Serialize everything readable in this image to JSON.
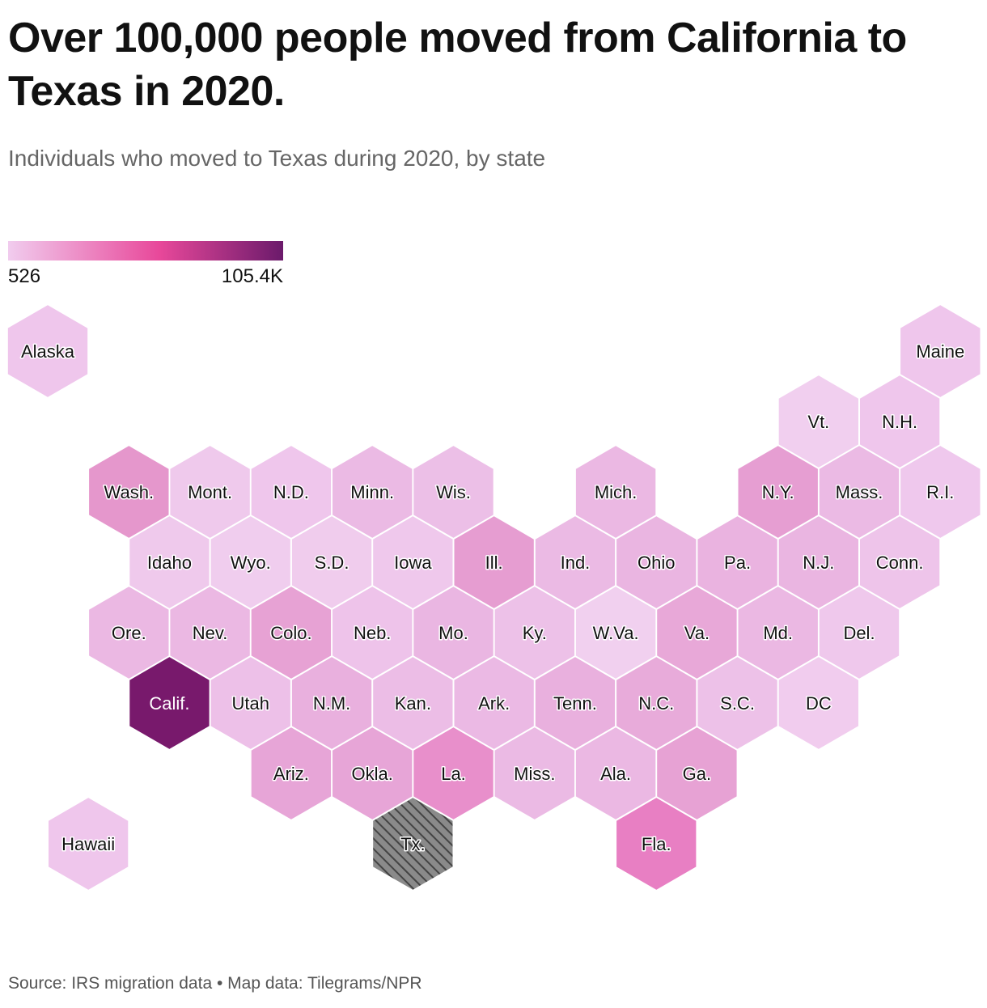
{
  "title": "Over 100,000 people moved from California to Texas in 2020.",
  "subtitle": "Individuals who moved to Texas during 2020, by state",
  "legend": {
    "min_label": "526",
    "max_label": "105.4K",
    "colors": [
      "#f1ccee",
      "#e8489a",
      "#6b1a6b"
    ]
  },
  "destination_fill": "#8a8a8a",
  "source": "Source: IRS migration data • Map data: Tilegrams/NPR",
  "states": [
    {
      "id": "alaska",
      "label": "Alaska",
      "col": 0,
      "row": 0,
      "color": "#efc6ec"
    },
    {
      "id": "maine",
      "label": "Maine",
      "col": 11,
      "row": 0,
      "color": "#efc6ec"
    },
    {
      "id": "vt",
      "label": "Vt.",
      "col": 9.5,
      "row": 1,
      "color": "#f1cfef"
    },
    {
      "id": "nh",
      "label": "N.H.",
      "col": 10.5,
      "row": 1,
      "color": "#efc6ec"
    },
    {
      "id": "wash",
      "label": "Wash.",
      "col": 1,
      "row": 2,
      "color": "#e597cc"
    },
    {
      "id": "mont",
      "label": "Mont.",
      "col": 2,
      "row": 2,
      "color": "#efc9ec"
    },
    {
      "id": "nd",
      "label": "N.D.",
      "col": 3,
      "row": 2,
      "color": "#efc6ec"
    },
    {
      "id": "minn",
      "label": "Minn.",
      "col": 4,
      "row": 2,
      "color": "#ebbae4"
    },
    {
      "id": "wis",
      "label": "Wis.",
      "col": 5,
      "row": 2,
      "color": "#ecbfe7"
    },
    {
      "id": "mich",
      "label": "Mich.",
      "col": 7,
      "row": 2,
      "color": "#ebb8e3"
    },
    {
      "id": "ny",
      "label": "N.Y.",
      "col": 9,
      "row": 2,
      "color": "#e69ed2"
    },
    {
      "id": "mass",
      "label": "Mass.",
      "col": 10,
      "row": 2,
      "color": "#ebbae4"
    },
    {
      "id": "ri",
      "label": "R.I.",
      "col": 11,
      "row": 2,
      "color": "#efc8ed"
    },
    {
      "id": "idaho",
      "label": "Idaho",
      "col": 1.5,
      "row": 3,
      "color": "#efc9ec"
    },
    {
      "id": "wyo",
      "label": "Wyo.",
      "col": 2.5,
      "row": 3,
      "color": "#f0cdee"
    },
    {
      "id": "sd",
      "label": "S.D.",
      "col": 3.5,
      "row": 3,
      "color": "#f0cced"
    },
    {
      "id": "iowa",
      "label": "Iowa",
      "col": 4.5,
      "row": 3,
      "color": "#efc8ec"
    },
    {
      "id": "ill",
      "label": "Ill.",
      "col": 5.5,
      "row": 3,
      "color": "#e69dd1"
    },
    {
      "id": "ind",
      "label": "Ind.",
      "col": 6.5,
      "row": 3,
      "color": "#ebbae4"
    },
    {
      "id": "ohio",
      "label": "Ohio",
      "col": 7.5,
      "row": 3,
      "color": "#eab5e1"
    },
    {
      "id": "pa",
      "label": "Pa.",
      "col": 8.5,
      "row": 3,
      "color": "#eab3e0"
    },
    {
      "id": "nj",
      "label": "N.J.",
      "col": 9.5,
      "row": 3,
      "color": "#eab5e1"
    },
    {
      "id": "conn",
      "label": "Conn.",
      "col": 10.5,
      "row": 3,
      "color": "#eec4ea"
    },
    {
      "id": "ore",
      "label": "Ore.",
      "col": 1,
      "row": 4,
      "color": "#ebb8e3"
    },
    {
      "id": "nev",
      "label": "Nev.",
      "col": 2,
      "row": 4,
      "color": "#ebb8e3"
    },
    {
      "id": "colo",
      "label": "Colo.",
      "col": 3,
      "row": 4,
      "color": "#e7a2d4"
    },
    {
      "id": "neb",
      "label": "Neb.",
      "col": 4,
      "row": 4,
      "color": "#eec3ea"
    },
    {
      "id": "mo",
      "label": "Mo.",
      "col": 5,
      "row": 4,
      "color": "#eab6e2"
    },
    {
      "id": "ky",
      "label": "Ky.",
      "col": 6,
      "row": 4,
      "color": "#edc1e8"
    },
    {
      "id": "wva",
      "label": "W.Va.",
      "col": 7,
      "row": 4,
      "color": "#f1d0ef"
    },
    {
      "id": "va",
      "label": "Va.",
      "col": 8,
      "row": 4,
      "color": "#e8a8d8"
    },
    {
      "id": "md",
      "label": "Md.",
      "col": 9,
      "row": 4,
      "color": "#ebb8e3"
    },
    {
      "id": "del",
      "label": "Del.",
      "col": 10,
      "row": 4,
      "color": "#efc8ec"
    },
    {
      "id": "calif",
      "label": "Calif.",
      "col": 1.5,
      "row": 5,
      "color": "#78196c"
    },
    {
      "id": "utah",
      "label": "Utah",
      "col": 2.5,
      "row": 5,
      "color": "#edc0e8"
    },
    {
      "id": "nm",
      "label": "N.M.",
      "col": 3.5,
      "row": 5,
      "color": "#e9b0de"
    },
    {
      "id": "kan",
      "label": "Kan.",
      "col": 4.5,
      "row": 5,
      "color": "#ecbde6"
    },
    {
      "id": "ark",
      "label": "Ark.",
      "col": 5.5,
      "row": 5,
      "color": "#ebb9e4"
    },
    {
      "id": "tenn",
      "label": "Tenn.",
      "col": 6.5,
      "row": 5,
      "color": "#e9b0de"
    },
    {
      "id": "nc",
      "label": "N.C.",
      "col": 7.5,
      "row": 5,
      "color": "#e8abda"
    },
    {
      "id": "sc",
      "label": "S.C.",
      "col": 8.5,
      "row": 5,
      "color": "#edc1e8"
    },
    {
      "id": "dc",
      "label": "DC",
      "col": 9.5,
      "row": 5,
      "color": "#f1ccee"
    },
    {
      "id": "ariz",
      "label": "Ariz.",
      "col": 3,
      "row": 6,
      "color": "#e7a5d7"
    },
    {
      "id": "okla",
      "label": "Okla.",
      "col": 4,
      "row": 6,
      "color": "#e7a5d7"
    },
    {
      "id": "la",
      "label": "La.",
      "col": 5,
      "row": 6,
      "color": "#e88fcb"
    },
    {
      "id": "miss",
      "label": "Miss.",
      "col": 6,
      "row": 6,
      "color": "#ebbae4"
    },
    {
      "id": "ala",
      "label": "Ala.",
      "col": 7,
      "row": 6,
      "color": "#ebb8e3"
    },
    {
      "id": "ga",
      "label": "Ga.",
      "col": 8,
      "row": 6,
      "color": "#e7a2d4"
    },
    {
      "id": "hawaii",
      "label": "Hawaii",
      "col": 0.5,
      "row": 7,
      "color": "#efc6ec"
    },
    {
      "id": "tx",
      "label": "Tx.",
      "col": 4.5,
      "row": 7,
      "color": "hatch"
    },
    {
      "id": "fla",
      "label": "Fla.",
      "col": 7.5,
      "row": 7,
      "color": "#e87fc3"
    }
  ]
}
